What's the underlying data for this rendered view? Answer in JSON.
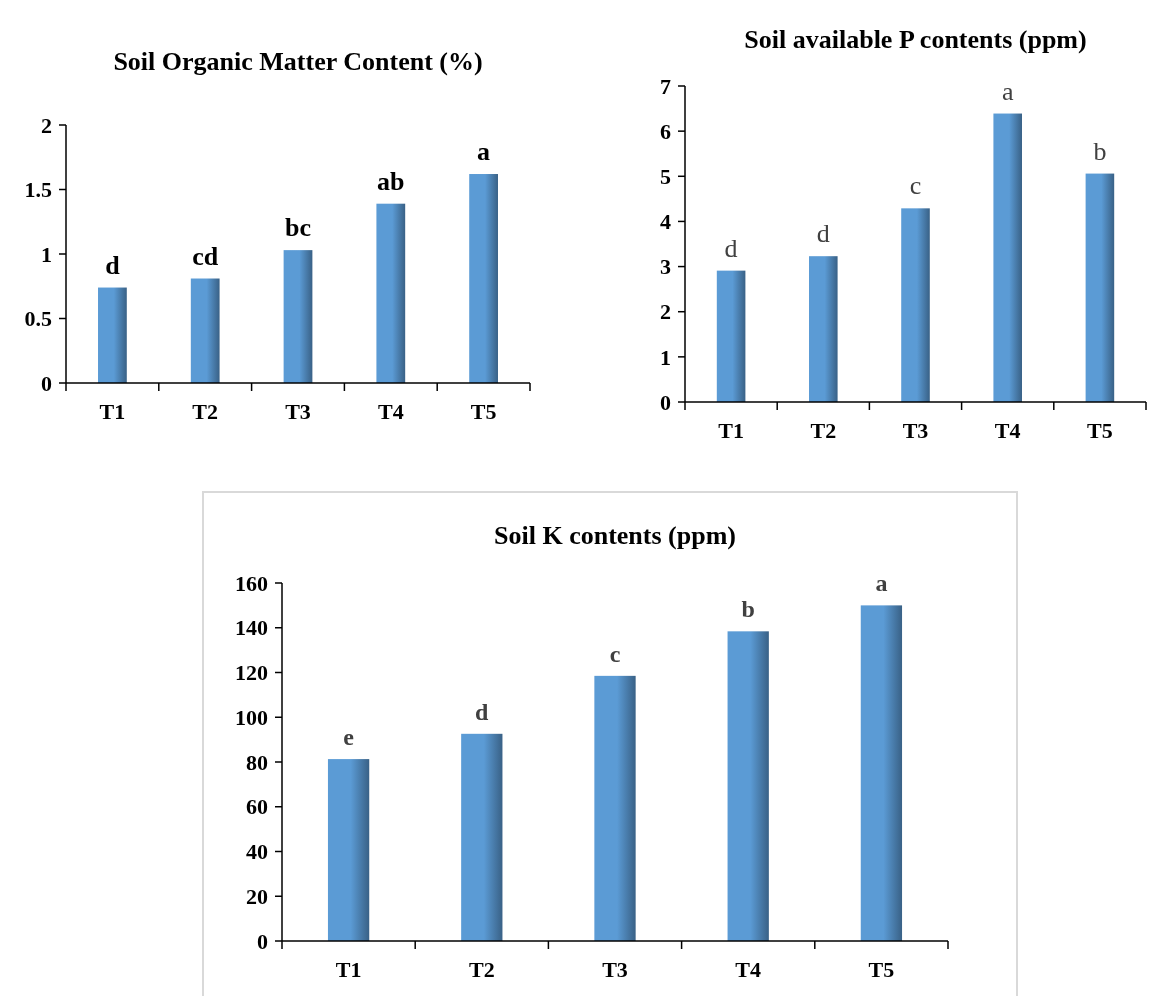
{
  "chart_data": [
    {
      "type": "bar",
      "title": "Soil Organic Matter Content (%)",
      "categories": [
        "T1",
        "T2",
        "T3",
        "T4",
        "T5"
      ],
      "values": [
        0.74,
        0.81,
        1.03,
        1.39,
        1.62
      ],
      "color": "#5b9bd5",
      "ylim": [
        0,
        2
      ],
      "yticks": [
        0,
        0.5,
        1,
        1.5,
        2
      ],
      "annotations": [
        {
          "text": "d",
          "x": "T1",
          "y": 0.74
        },
        {
          "text": "cd",
          "x": "T2",
          "y": 0.81
        },
        {
          "text": "bc",
          "x": "T3",
          "y": 1.03
        },
        {
          "text": "ab",
          "x": "T4",
          "y": 1.39
        },
        {
          "text": "a",
          "x": "T5",
          "y": 1.62
        }
      ]
    },
    {
      "type": "bar",
      "title": "Soil available P contents (ppm)",
      "categories": [
        "T1",
        "T2",
        "T3",
        "T4",
        "T5"
      ],
      "values": [
        2.91,
        3.23,
        4.29,
        6.39,
        5.06
      ],
      "color": "#5b9bd5",
      "ylim": [
        0,
        7
      ],
      "yticks": [
        0,
        1,
        2,
        3,
        4,
        5,
        6,
        7
      ],
      "annotations": [
        {
          "text": "d",
          "x": "T1",
          "y": 2.91
        },
        {
          "text": "d",
          "x": "T2",
          "y": 3.23
        },
        {
          "text": "c",
          "x": "T3",
          "y": 4.29
        },
        {
          "text": "a",
          "x": "T4",
          "y": 6.39
        },
        {
          "text": "b",
          "x": "T5",
          "y": 5.06
        }
      ]
    },
    {
      "type": "bar",
      "title": "Soil K contents (ppm)",
      "categories": [
        "T1",
        "T2",
        "T3",
        "T4",
        "T5"
      ],
      "values": [
        81.3,
        92.6,
        118.5,
        138.4,
        150
      ],
      "color": "#5b9bd5",
      "ylim": [
        0,
        160
      ],
      "yticks": [
        0,
        20,
        40,
        60,
        80,
        100,
        120,
        140,
        160
      ],
      "annotations": [
        {
          "text": "e",
          "x": "T1",
          "y": 81.3
        },
        {
          "text": "d",
          "x": "T2",
          "y": 92.6
        },
        {
          "text": "c",
          "x": "T3",
          "y": 118.5
        },
        {
          "text": "b",
          "x": "T4",
          "y": 138.4
        },
        {
          "text": "a",
          "x": "T5",
          "y": 150
        }
      ]
    }
  ]
}
